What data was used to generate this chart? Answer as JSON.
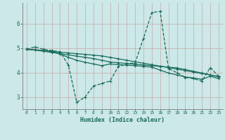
{
  "title": "",
  "xlabel": "Humidex (Indice chaleur)",
  "ylabel": "",
  "bg_color": "#cce8e8",
  "line_color": "#1a6b5a",
  "grid_color": "#b8d8d8",
  "x_values": [
    0,
    1,
    2,
    3,
    4,
    5,
    6,
    7,
    8,
    9,
    10,
    11,
    12,
    13,
    14,
    15,
    16,
    17,
    18,
    19,
    20,
    21,
    22,
    23
  ],
  "series1": [
    4.95,
    5.05,
    4.95,
    4.9,
    4.85,
    4.3,
    2.78,
    3.0,
    3.45,
    3.55,
    3.65,
    4.25,
    4.35,
    4.4,
    5.4,
    6.45,
    6.5,
    4.15,
    4.0,
    3.8,
    3.75,
    3.65,
    4.2,
    3.85
  ],
  "series2": [
    4.95,
    4.93,
    4.9,
    4.87,
    4.75,
    4.62,
    4.5,
    4.42,
    4.35,
    4.28,
    4.35,
    4.32,
    4.3,
    4.28,
    4.25,
    4.22,
    4.1,
    3.98,
    3.9,
    3.82,
    3.78,
    3.72,
    3.85,
    3.75
  ],
  "series3": [
    4.95,
    4.92,
    4.89,
    4.86,
    4.83,
    4.8,
    4.77,
    4.74,
    4.71,
    4.68,
    4.62,
    4.56,
    4.5,
    4.44,
    4.38,
    4.32,
    4.26,
    4.2,
    4.14,
    4.08,
    4.02,
    3.96,
    3.9,
    3.84
  ],
  "series4": [
    4.95,
    4.92,
    4.87,
    4.82,
    4.77,
    4.72,
    4.67,
    4.62,
    4.57,
    4.5,
    4.43,
    4.4,
    4.37,
    4.34,
    4.31,
    4.28,
    4.25,
    4.22,
    4.19,
    4.12,
    4.05,
    3.98,
    3.9,
    3.82
  ],
  "ylim": [
    2.5,
    6.85
  ],
  "yticks": [
    3,
    4,
    5,
    6
  ],
  "xlim": [
    -0.5,
    23.5
  ]
}
